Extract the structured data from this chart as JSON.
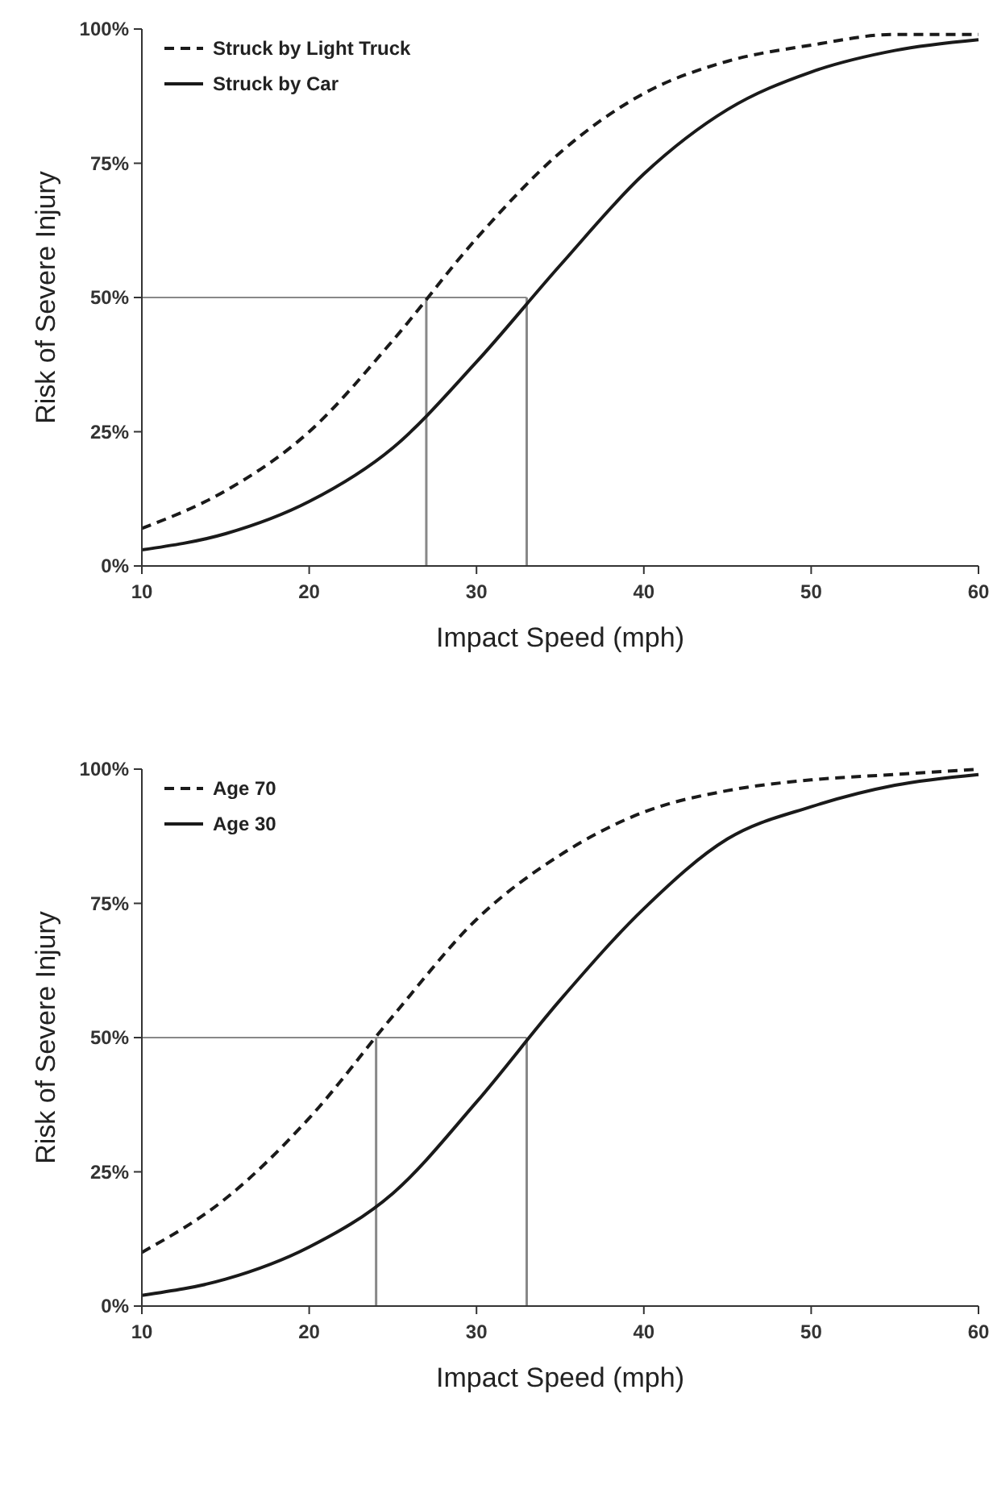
{
  "chart_data": [
    {
      "type": "line",
      "xlabel": "Impact Speed (mph)",
      "ylabel": "Risk of Severe Injury",
      "x": [
        10,
        15,
        20,
        25,
        30,
        35,
        40,
        45,
        50,
        55,
        60
      ],
      "xlim": [
        10,
        60
      ],
      "xticks": [
        10,
        20,
        30,
        40,
        50,
        60
      ],
      "ylim": [
        0,
        100
      ],
      "yticks": [
        {
          "value": 0,
          "label": "0%"
        },
        {
          "value": 25,
          "label": "25%"
        },
        {
          "value": 50,
          "label": "50%"
        },
        {
          "value": 75,
          "label": "75%"
        },
        {
          "value": 100,
          "label": "100%"
        }
      ],
      "grid": false,
      "legend": "top left",
      "marker": "none",
      "series": [
        {
          "name": "Struck by Light Truck",
          "color": "#1a1a1a",
          "line_style": "dashed",
          "values": [
            7,
            14,
            25,
            42,
            61,
            77,
            88,
            94,
            97,
            99,
            99
          ]
        },
        {
          "name": "Struck by Car",
          "color": "#1a1a1a",
          "line_style": "solid",
          "values": [
            3,
            6,
            12,
            22,
            38,
            56,
            73,
            85,
            92,
            96,
            98
          ]
        }
      ],
      "ref_lines": [
        {
          "axis": "y",
          "value": 50,
          "color": "#888888"
        },
        {
          "axis": "x",
          "value": 27,
          "color": "#888888"
        },
        {
          "axis": "x",
          "value": 33,
          "color": "#888888"
        }
      ]
    },
    {
      "type": "line",
      "xlabel": "Impact Speed (mph)",
      "ylabel": "Risk of Severe Injury",
      "x": [
        10,
        15,
        20,
        25,
        30,
        35,
        40,
        45,
        50,
        55,
        60
      ],
      "xlim": [
        10,
        60
      ],
      "xticks": [
        10,
        20,
        30,
        40,
        50,
        60
      ],
      "ylim": [
        0,
        100
      ],
      "yticks": [
        {
          "value": 0,
          "label": "0%"
        },
        {
          "value": 25,
          "label": "25%"
        },
        {
          "value": 50,
          "label": "50%"
        },
        {
          "value": 75,
          "label": "75%"
        },
        {
          "value": 100,
          "label": "100%"
        }
      ],
      "grid": false,
      "legend": "top left",
      "marker": "none",
      "series": [
        {
          "name": "Age 70",
          "color": "#1a1a1a",
          "line_style": "dashed",
          "values": [
            10,
            20,
            35,
            54,
            72,
            84,
            92,
            96,
            98,
            99,
            100
          ]
        },
        {
          "name": "Age 30",
          "color": "#1a1a1a",
          "line_style": "solid",
          "values": [
            2,
            5,
            11,
            21,
            38,
            57,
            74,
            87,
            93,
            97,
            99
          ]
        }
      ],
      "ref_lines": [
        {
          "axis": "y",
          "value": 50,
          "color": "#888888"
        },
        {
          "axis": "x",
          "value": 24,
          "color": "#888888"
        },
        {
          "axis": "x",
          "value": 33,
          "color": "#888888"
        }
      ]
    }
  ]
}
